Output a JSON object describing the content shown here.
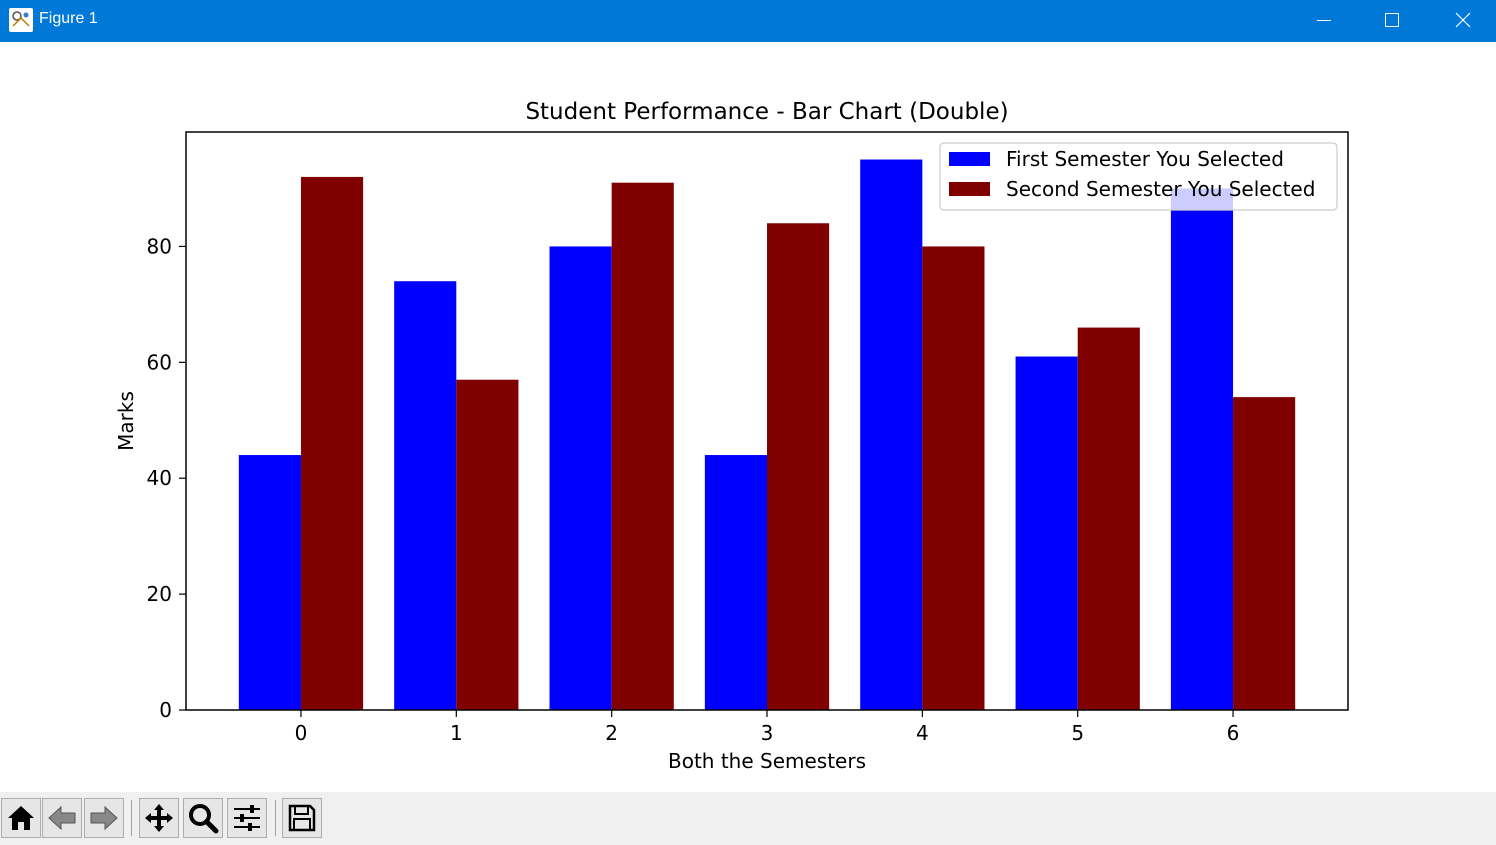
{
  "window": {
    "title": "Figure 1",
    "buttons": [
      "minimize-icon",
      "maximize-icon",
      "close-icon"
    ]
  },
  "toolbar": {
    "buttons": [
      {
        "name": "home-button",
        "icon": "home-icon"
      },
      {
        "name": "back-button",
        "icon": "arrow-left-icon"
      },
      {
        "name": "forward-button",
        "icon": "arrow-right-icon"
      },
      {
        "name": "pan-button",
        "icon": "move-icon"
      },
      {
        "name": "zoom-button",
        "icon": "magnifier-icon"
      },
      {
        "name": "configure-subplots-button",
        "icon": "sliders-icon"
      },
      {
        "name": "save-button",
        "icon": "floppy-disk-icon"
      }
    ]
  },
  "chart_data": {
    "type": "bar",
    "title": "Student Performance - Bar Chart (Double)",
    "xlabel": "Both the Semesters",
    "ylabel": "Marks",
    "categories": [
      "0",
      "1",
      "2",
      "3",
      "4",
      "5",
      "6"
    ],
    "series": [
      {
        "name": "First Semester You Selected",
        "color": "#0000ff",
        "values": [
          44,
          74,
          80,
          44,
          95,
          61,
          90
        ]
      },
      {
        "name": "Second Semester You Selected",
        "color": "#800000",
        "values": [
          92,
          57,
          91,
          84,
          80,
          66,
          54
        ]
      }
    ],
    "yticks": [
      0,
      20,
      40,
      60,
      80
    ],
    "ylim": [
      0,
      99.75
    ],
    "xlim": [
      -0.74,
      6.74
    ],
    "bar_width": 0.4,
    "grid": false,
    "legend": "upper right"
  }
}
